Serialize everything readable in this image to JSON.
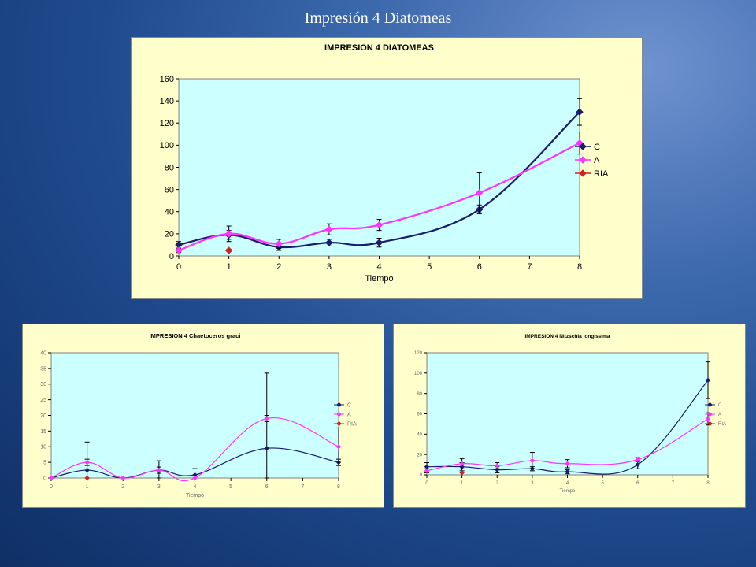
{
  "slide": {
    "title": "Impresión 4 Diatomeas"
  },
  "colors": {
    "C": "#1c1c6b",
    "A": "#ff33ff",
    "RIA": "#cc2222",
    "plot_bg": "#ccffff",
    "panel_bg": "#ffffcc"
  },
  "chart_data": [
    {
      "type": "line",
      "title": "IMPRESION 4 DIATOMEAS",
      "xlabel": "Tiempo",
      "ylabel": "",
      "xlim": [
        0,
        8
      ],
      "ylim": [
        0,
        160
      ],
      "xticks": [
        "0",
        "1",
        "2",
        "3",
        "4",
        "5",
        "6",
        "7",
        "8"
      ],
      "yticks": [
        "0",
        "20",
        "40",
        "60",
        "80",
        "100",
        "120",
        "140",
        "160"
      ],
      "legend": "right",
      "series": [
        {
          "name": "C",
          "x": [
            0,
            1,
            2,
            3,
            4,
            6,
            8
          ],
          "y": [
            10,
            19,
            8,
            12,
            12,
            42,
            130
          ],
          "err": [
            3,
            4,
            3,
            3,
            4,
            4,
            12
          ]
        },
        {
          "name": "A",
          "x": [
            0,
            1,
            2,
            3,
            4,
            6,
            8
          ],
          "y": [
            5,
            20,
            11,
            24,
            28,
            57,
            102
          ],
          "err": [
            2,
            7,
            4,
            5,
            5,
            18,
            10
          ]
        },
        {
          "name": "RIA",
          "x": [
            1
          ],
          "y": [
            5
          ],
          "err": [
            1
          ]
        }
      ]
    },
    {
      "type": "line",
      "title": "IMPRESION 4 Chaetoceros graci",
      "xlabel": "Tiempo",
      "ylabel": "",
      "xlim": [
        0,
        8
      ],
      "ylim": [
        0,
        40
      ],
      "xticks": [
        "0",
        "1",
        "2",
        "3",
        "4",
        "5",
        "6",
        "7",
        "8"
      ],
      "yticks": [
        "0",
        "5",
        "10",
        "15",
        "20",
        "25",
        "30",
        "35",
        "40"
      ],
      "legend": "right",
      "series": [
        {
          "name": "C",
          "x": [
            0,
            1,
            2,
            3,
            4,
            6,
            8
          ],
          "y": [
            0,
            2.5,
            0,
            2.5,
            1,
            9.5,
            5
          ],
          "err": [
            0,
            9,
            0,
            3,
            2,
            24,
            1
          ]
        },
        {
          "name": "A",
          "x": [
            0,
            1,
            2,
            3,
            4,
            6,
            8
          ],
          "y": [
            0,
            5,
            0,
            2.5,
            0,
            19,
            10
          ],
          "err": [
            0,
            1,
            0,
            1,
            0,
            1,
            6
          ]
        },
        {
          "name": "RIA",
          "x": [
            1
          ],
          "y": [
            0
          ],
          "err": [
            0
          ]
        }
      ]
    },
    {
      "type": "line",
      "title": "IMPRESION 4 Nitzschia longissima",
      "xlabel": "Tiempo",
      "ylabel": "",
      "xlim": [
        0,
        8
      ],
      "ylim": [
        0,
        120
      ],
      "xticks": [
        "0",
        "1",
        "2",
        "3",
        "4",
        "5",
        "6",
        "7",
        "8"
      ],
      "yticks": [
        "0",
        "20",
        "40",
        "60",
        "80",
        "100",
        "120"
      ],
      "legend": "right",
      "series": [
        {
          "name": "C",
          "x": [
            0,
            1,
            2,
            3,
            4,
            6,
            8
          ],
          "y": [
            8,
            8,
            5,
            6,
            3,
            10,
            93
          ],
          "err": [
            4,
            4,
            3,
            2,
            2,
            4,
            18
          ]
        },
        {
          "name": "A",
          "x": [
            0,
            1,
            2,
            3,
            4,
            6,
            8
          ],
          "y": [
            4,
            11,
            9,
            14,
            11,
            15,
            55
          ],
          "err": [
            2,
            5,
            3,
            8,
            4,
            2,
            6
          ]
        },
        {
          "name": "RIA",
          "x": [
            1
          ],
          "y": [
            2
          ],
          "err": [
            0
          ]
        }
      ]
    }
  ]
}
